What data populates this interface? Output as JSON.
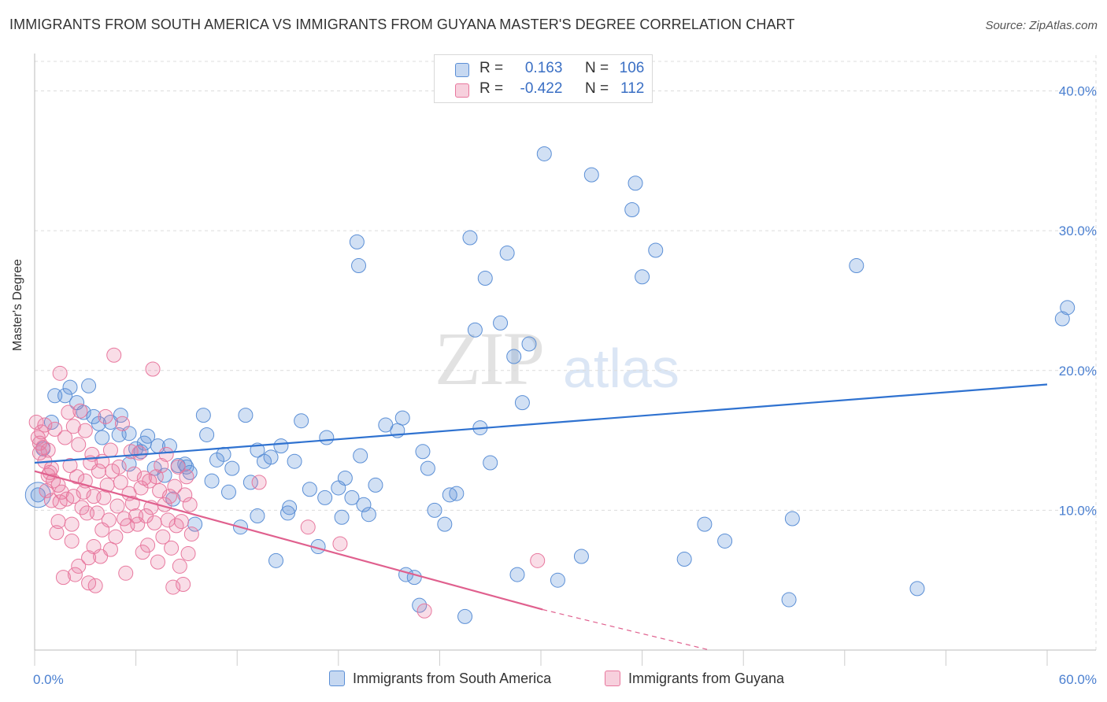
{
  "title": "IMMIGRANTS FROM SOUTH AMERICA VS IMMIGRANTS FROM GUYANA MASTER'S DEGREE CORRELATION CHART",
  "source": "Source: ZipAtlas.com",
  "watermark_zip": "ZIP",
  "watermark_atlas": "atlas",
  "colors": {
    "blue": "#5b8fd6",
    "pink": "#e8789e",
    "blue_line": "#2f72d0",
    "pink_line": "#e0608e"
  },
  "legend": {
    "rows": [
      {
        "r_label": "R =",
        "r_value": "0.163",
        "n_label": "N =",
        "n_value": "106",
        "series": "blue"
      },
      {
        "r_label": "R =",
        "r_value": "-0.422",
        "n_label": "N =",
        "n_value": "112",
        "series": "pink"
      }
    ]
  },
  "bottom_legend": [
    "Immigrants from South America",
    "Immigrants from Guyana"
  ],
  "chart_data": {
    "type": "scatter",
    "title": "IMMIGRANTS FROM SOUTH AMERICA VS IMMIGRANTS FROM GUYANA MASTER'S DEGREE CORRELATION CHART",
    "xlabel": "",
    "ylabel": "Master's Degree",
    "x_unit": "%",
    "xlim": [
      0,
      60
    ],
    "ylim": [
      0,
      42
    ],
    "x_tick_labels": [
      "0.0%",
      "60.0%"
    ],
    "y_ticks": [
      10,
      20,
      30,
      40
    ],
    "y_tick_labels": [
      "10.0%",
      "20.0%",
      "30.0%",
      "40.0%"
    ],
    "grid": true,
    "legend_position": "top-center",
    "series": [
      {
        "name": "Immigrants from South America",
        "color": "#5b8fd6",
        "trend": {
          "x0": 0,
          "y0": 13.4,
          "x1": 60,
          "y1": 19.0
        },
        "points": [
          [
            0.2,
            11.1
          ],
          [
            0.5,
            14.4
          ],
          [
            1.0,
            16.3
          ],
          [
            1.2,
            18.2
          ],
          [
            1.8,
            18.2
          ],
          [
            2.1,
            18.8
          ],
          [
            2.5,
            17.7
          ],
          [
            3.2,
            18.9
          ],
          [
            2.9,
            17.0
          ],
          [
            3.5,
            16.7
          ],
          [
            3.8,
            16.2
          ],
          [
            4.0,
            15.2
          ],
          [
            4.5,
            16.3
          ],
          [
            5.0,
            15.4
          ],
          [
            5.1,
            16.8
          ],
          [
            5.6,
            15.5
          ],
          [
            5.6,
            13.3
          ],
          [
            6.0,
            14.4
          ],
          [
            6.3,
            14.2
          ],
          [
            6.5,
            14.8
          ],
          [
            6.7,
            15.3
          ],
          [
            7.1,
            13.0
          ],
          [
            7.3,
            14.6
          ],
          [
            7.7,
            12.5
          ],
          [
            8.0,
            14.6
          ],
          [
            8.2,
            10.8
          ],
          [
            8.5,
            13.2
          ],
          [
            8.9,
            13.3
          ],
          [
            9.0,
            13.1
          ],
          [
            9.2,
            12.7
          ],
          [
            9.5,
            9.0
          ],
          [
            10.0,
            16.8
          ],
          [
            10.2,
            15.4
          ],
          [
            10.5,
            12.1
          ],
          [
            10.8,
            13.6
          ],
          [
            11.2,
            14.0
          ],
          [
            11.5,
            11.3
          ],
          [
            11.7,
            13.0
          ],
          [
            12.2,
            8.8
          ],
          [
            12.5,
            16.8
          ],
          [
            12.8,
            12.0
          ],
          [
            13.2,
            14.3
          ],
          [
            13.6,
            13.5
          ],
          [
            13.2,
            9.6
          ],
          [
            14.0,
            13.8
          ],
          [
            14.3,
            6.4
          ],
          [
            14.6,
            14.6
          ],
          [
            15.1,
            10.2
          ],
          [
            15.0,
            9.8
          ],
          [
            15.4,
            13.5
          ],
          [
            15.8,
            16.4
          ],
          [
            16.3,
            11.5
          ],
          [
            16.8,
            7.4
          ],
          [
            17.3,
            15.2
          ],
          [
            17.2,
            10.9
          ],
          [
            18.0,
            11.6
          ],
          [
            18.2,
            9.5
          ],
          [
            18.4,
            12.3
          ],
          [
            18.8,
            10.9
          ],
          [
            19.1,
            29.2
          ],
          [
            19.3,
            13.9
          ],
          [
            19.5,
            10.4
          ],
          [
            19.2,
            27.5
          ],
          [
            19.8,
            9.7
          ],
          [
            20.2,
            11.8
          ],
          [
            20.8,
            16.1
          ],
          [
            21.5,
            15.7
          ],
          [
            22.0,
            5.4
          ],
          [
            21.8,
            16.6
          ],
          [
            22.5,
            5.2
          ],
          [
            22.8,
            3.2
          ],
          [
            23.0,
            14.2
          ],
          [
            23.3,
            13.0
          ],
          [
            23.7,
            10.0
          ],
          [
            24.3,
            9.0
          ],
          [
            24.6,
            11.1
          ],
          [
            25.0,
            11.2
          ],
          [
            25.5,
            2.4
          ],
          [
            25.8,
            29.5
          ],
          [
            26.1,
            22.9
          ],
          [
            26.4,
            15.9
          ],
          [
            26.7,
            26.6
          ],
          [
            27.0,
            13.4
          ],
          [
            27.6,
            23.4
          ],
          [
            28.0,
            28.4
          ],
          [
            28.4,
            21.0
          ],
          [
            28.6,
            5.4
          ],
          [
            28.9,
            17.7
          ],
          [
            29.3,
            21.9
          ],
          [
            30.2,
            35.5
          ],
          [
            31.0,
            5.0
          ],
          [
            32.4,
            6.7
          ],
          [
            33.0,
            34.0
          ],
          [
            35.4,
            31.5
          ],
          [
            35.6,
            33.4
          ],
          [
            36.0,
            26.7
          ],
          [
            36.8,
            28.6
          ],
          [
            38.5,
            6.5
          ],
          [
            39.7,
            9.0
          ],
          [
            40.9,
            7.8
          ],
          [
            44.7,
            3.6
          ],
          [
            44.9,
            9.4
          ],
          [
            48.7,
            27.5
          ],
          [
            52.3,
            4.4
          ],
          [
            60.9,
            23.7
          ],
          [
            61.2,
            24.5
          ]
        ]
      },
      {
        "name": "Immigrants from Guyana",
        "color": "#e8789e",
        "trend": {
          "x0": 0,
          "y0": 12.8,
          "x1": 30.1,
          "y1": 2.9,
          "dash_to_x": 40.0
        },
        "points": [
          [
            0.1,
            16.3
          ],
          [
            0.2,
            15.2
          ],
          [
            0.3,
            14.8
          ],
          [
            0.3,
            14.1
          ],
          [
            0.4,
            15.6
          ],
          [
            0.5,
            14.5
          ],
          [
            0.6,
            16.1
          ],
          [
            0.6,
            13.5
          ],
          [
            0.7,
            11.4
          ],
          [
            0.8,
            12.5
          ],
          [
            0.8,
            14.3
          ],
          [
            0.9,
            12.7
          ],
          [
            1.0,
            10.7
          ],
          [
            1.0,
            13.0
          ],
          [
            1.1,
            12.1
          ],
          [
            1.2,
            15.8
          ],
          [
            1.3,
            8.4
          ],
          [
            1.4,
            9.2
          ],
          [
            1.4,
            11.8
          ],
          [
            1.5,
            10.6
          ],
          [
            1.5,
            19.8
          ],
          [
            1.6,
            11.3
          ],
          [
            1.7,
            5.2
          ],
          [
            1.8,
            15.2
          ],
          [
            1.9,
            10.8
          ],
          [
            2.0,
            17.0
          ],
          [
            2.1,
            13.2
          ],
          [
            2.2,
            7.8
          ],
          [
            2.2,
            9.0
          ],
          [
            2.3,
            11.0
          ],
          [
            2.3,
            16.0
          ],
          [
            2.4,
            5.4
          ],
          [
            2.5,
            12.4
          ],
          [
            2.6,
            6.0
          ],
          [
            2.6,
            14.7
          ],
          [
            2.7,
            17.1
          ],
          [
            2.8,
            10.2
          ],
          [
            2.9,
            11.3
          ],
          [
            3.0,
            15.7
          ],
          [
            3.0,
            12.1
          ],
          [
            3.1,
            9.8
          ],
          [
            3.2,
            6.6
          ],
          [
            3.2,
            4.8
          ],
          [
            3.3,
            13.4
          ],
          [
            3.4,
            14.0
          ],
          [
            3.5,
            11.0
          ],
          [
            3.5,
            7.4
          ],
          [
            3.6,
            4.6
          ],
          [
            3.7,
            9.8
          ],
          [
            3.8,
            12.8
          ],
          [
            3.9,
            6.7
          ],
          [
            4.0,
            8.6
          ],
          [
            4.0,
            13.5
          ],
          [
            4.1,
            10.9
          ],
          [
            4.2,
            16.7
          ],
          [
            4.3,
            11.8
          ],
          [
            4.4,
            9.3
          ],
          [
            4.5,
            7.2
          ],
          [
            4.5,
            14.3
          ],
          [
            4.6,
            12.8
          ],
          [
            4.7,
            21.1
          ],
          [
            4.8,
            8.1
          ],
          [
            4.9,
            10.3
          ],
          [
            5.0,
            13.1
          ],
          [
            5.1,
            12.0
          ],
          [
            5.2,
            16.2
          ],
          [
            5.3,
            9.4
          ],
          [
            5.4,
            5.5
          ],
          [
            5.5,
            8.9
          ],
          [
            5.6,
            11.2
          ],
          [
            5.7,
            14.2
          ],
          [
            5.8,
            10.5
          ],
          [
            5.9,
            12.6
          ],
          [
            6.0,
            9.6
          ],
          [
            6.1,
            9.0
          ],
          [
            6.2,
            14.1
          ],
          [
            6.3,
            11.6
          ],
          [
            6.4,
            7.0
          ],
          [
            6.5,
            12.3
          ],
          [
            6.6,
            9.6
          ],
          [
            6.7,
            7.5
          ],
          [
            6.8,
            12.1
          ],
          [
            6.9,
            10.2
          ],
          [
            7.0,
            20.1
          ],
          [
            7.1,
            9.1
          ],
          [
            7.2,
            12.4
          ],
          [
            7.3,
            6.3
          ],
          [
            7.4,
            11.4
          ],
          [
            7.5,
            13.2
          ],
          [
            7.6,
            8.1
          ],
          [
            7.7,
            10.4
          ],
          [
            7.8,
            14.0
          ],
          [
            7.9,
            9.3
          ],
          [
            8.0,
            11.0
          ],
          [
            8.1,
            7.3
          ],
          [
            8.2,
            4.5
          ],
          [
            8.3,
            11.7
          ],
          [
            8.4,
            8.9
          ],
          [
            8.5,
            13.1
          ],
          [
            8.6,
            6.0
          ],
          [
            8.7,
            9.2
          ],
          [
            8.8,
            4.7
          ],
          [
            8.9,
            11.1
          ],
          [
            9.0,
            12.4
          ],
          [
            9.1,
            6.9
          ],
          [
            9.2,
            10.4
          ],
          [
            9.3,
            8.3
          ],
          [
            13.3,
            12.0
          ],
          [
            16.2,
            8.8
          ],
          [
            18.1,
            7.6
          ],
          [
            23.1,
            2.8
          ],
          [
            29.8,
            6.4
          ]
        ]
      }
    ]
  }
}
